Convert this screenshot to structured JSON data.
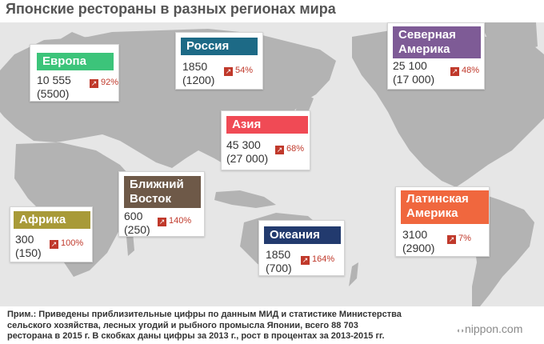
{
  "title": "Японские рестораны в разных регионах мира",
  "chart_data": {
    "type": "map",
    "title": "Японские рестораны в разных регионах мира",
    "series": [
      {
        "name": "2015",
        "unit": "ресторанов"
      },
      {
        "name": "2013",
        "unit": "ресторанов"
      }
    ],
    "regions": [
      {
        "key": "europe",
        "label": "Европа",
        "color": "#3cc47a",
        "count_2015": "10 555",
        "count_2013": "(5500)",
        "growth": "92%"
      },
      {
        "key": "russia",
        "label": "Россия",
        "color": "#1d6a86",
        "count_2015": "1850",
        "count_2013": "(1200)",
        "growth": "54%"
      },
      {
        "key": "north_america",
        "label": "Северная Америка",
        "label_lines": [
          "Северная",
          "Америка"
        ],
        "color": "#7e5b96",
        "count_2015": "25 100",
        "count_2013": "(17 000)",
        "growth": "48%"
      },
      {
        "key": "asia",
        "label": "Азия",
        "color": "#f04a55",
        "count_2015": "45 300",
        "count_2013": "(27 000)",
        "growth": "68%"
      },
      {
        "key": "middle_east",
        "label": "Ближний Восток",
        "label_lines": [
          "Ближний",
          "Восток"
        ],
        "color": "#6e5948",
        "count_2015": "600",
        "count_2013": "(250)",
        "growth": "140%"
      },
      {
        "key": "africa",
        "label": "Африка",
        "color": "#a89a38",
        "count_2015": "300",
        "count_2013": "(150)",
        "growth": "100%"
      },
      {
        "key": "oceania",
        "label": "Океания",
        "color": "#223a6e",
        "count_2015": "1850",
        "count_2013": "(700)",
        "growth": "164%"
      },
      {
        "key": "latin_america",
        "label": "Латинская Америка",
        "label_lines": [
          "Латинская",
          "Америка"
        ],
        "color": "#f0673e",
        "count_2015": "3100",
        "count_2013": "(2900)",
        "growth": "7%"
      }
    ]
  },
  "colors": {
    "land": "#b3b3b3",
    "sea": "#e6e6e6",
    "growth": "#c0392b"
  },
  "icons": {
    "growth_arrow": "arrow-up-right-icon",
    "logo_mark": "nippon-logo-mark"
  },
  "note_lines": [
    "Прим.: Приведены приблизительные цифры по данным МИД и статистике Министерства",
    "сельского хозяйства, лесных угодий и рыбного промысла Японии, всего 88 703",
    "ресторана в 2015 г. В скобках даны цифры за 2013 г., рост в процентах за 2013-2015 гг."
  ],
  "logo": "nippon.com"
}
